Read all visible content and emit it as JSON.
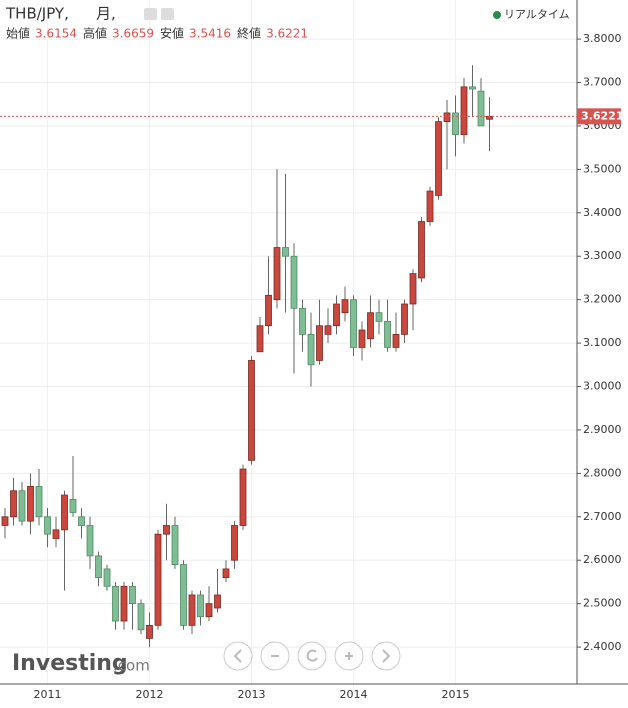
{
  "chart_data": {
    "type": "candlestick",
    "title": "THB/JPY,",
    "subtitle": "月,",
    "ohlc_labels": [
      "始値",
      "高値",
      "安値",
      "終値"
    ],
    "status": "リアルタイム",
    "categories": [
      null,
      null,
      null,
      null,
      null,
      "2011",
      null,
      null,
      null,
      null,
      null,
      null,
      null,
      null,
      null,
      null,
      null,
      "2012",
      null,
      null,
      null,
      null,
      null,
      null,
      null,
      null,
      null,
      null,
      null,
      "2013",
      null,
      null,
      null,
      null,
      null,
      null,
      null,
      null,
      null,
      null,
      null,
      "2014",
      null,
      null,
      null,
      null,
      null,
      null,
      null,
      null,
      null,
      null,
      null,
      "2015",
      null,
      null,
      null,
      null
    ],
    "open": [
      2.68,
      2.7,
      2.76,
      2.69,
      2.77,
      2.7,
      2.65,
      2.67,
      2.74,
      2.7,
      2.68,
      2.61,
      2.58,
      2.54,
      2.46,
      2.54,
      2.5,
      2.42,
      2.45,
      2.66,
      2.68,
      2.59,
      2.45,
      2.52,
      2.47,
      2.49,
      2.56,
      2.6,
      2.68,
      2.83,
      3.08,
      3.14,
      3.2,
      3.32,
      3.3,
      3.18,
      3.12,
      3.06,
      3.12,
      3.14,
      3.17,
      3.2,
      3.09,
      3.11,
      3.17,
      3.15,
      3.09,
      3.12,
      3.19,
      3.25,
      3.38,
      3.44,
      3.61,
      3.63,
      3.58,
      3.69,
      3.68,
      3.6154
    ],
    "high": [
      2.72,
      2.79,
      2.78,
      2.8,
      2.81,
      2.72,
      2.7,
      2.76,
      2.84,
      2.72,
      2.7,
      2.62,
      2.59,
      2.55,
      2.55,
      2.55,
      2.51,
      2.48,
      2.67,
      2.73,
      2.7,
      2.6,
      2.53,
      2.53,
      2.54,
      2.58,
      2.6,
      2.69,
      2.82,
      3.07,
      3.16,
      3.3,
      3.5,
      3.49,
      3.33,
      3.2,
      3.17,
      3.2,
      3.18,
      3.21,
      3.23,
      3.21,
      3.15,
      3.21,
      3.2,
      3.2,
      3.17,
      3.2,
      3.27,
      3.39,
      3.46,
      3.62,
      3.66,
      3.67,
      3.71,
      3.74,
      3.71,
      3.6659
    ],
    "low": [
      2.65,
      2.68,
      2.68,
      2.66,
      2.68,
      2.63,
      2.63,
      2.53,
      2.7,
      2.65,
      2.58,
      2.54,
      2.53,
      2.44,
      2.44,
      2.44,
      2.43,
      2.4,
      2.44,
      2.6,
      2.58,
      2.44,
      2.43,
      2.45,
      2.46,
      2.48,
      2.55,
      2.58,
      2.67,
      2.82,
      3.08,
      3.12,
      3.18,
      3.17,
      3.03,
      3.08,
      3.0,
      3.05,
      3.1,
      3.12,
      3.15,
      3.07,
      3.06,
      3.09,
      3.12,
      3.08,
      3.08,
      3.1,
      3.13,
      3.24,
      3.37,
      3.43,
      3.5,
      3.53,
      3.56,
      3.62,
      3.6,
      3.5416
    ],
    "close": [
      2.7,
      2.76,
      2.69,
      2.77,
      2.7,
      2.66,
      2.67,
      2.75,
      2.71,
      2.68,
      2.61,
      2.56,
      2.54,
      2.46,
      2.54,
      2.5,
      2.44,
      2.45,
      2.66,
      2.68,
      2.59,
      2.45,
      2.52,
      2.47,
      2.5,
      2.52,
      2.58,
      2.68,
      2.81,
      3.06,
      3.14,
      3.21,
      3.32,
      3.3,
      3.18,
      3.12,
      3.05,
      3.14,
      3.14,
      3.19,
      3.2,
      3.09,
      3.13,
      3.17,
      3.15,
      3.09,
      3.12,
      3.19,
      3.26,
      3.38,
      3.45,
      3.61,
      3.63,
      3.58,
      3.69,
      3.685,
      3.6,
      3.6221
    ],
    "up_color": "#c9473c",
    "down_color": "#7fbd95",
    "ylim": [
      2.315,
      3.89
    ],
    "yticks": [
      {
        "value": 2.4,
        "label": "2.4000"
      },
      {
        "value": 2.5,
        "label": "2.5000"
      },
      {
        "value": 2.6,
        "label": "2.6000"
      },
      {
        "value": 2.7,
        "label": "2.7000"
      },
      {
        "value": 2.8,
        "label": "2.8000"
      },
      {
        "value": 2.9,
        "label": "2.9000"
      },
      {
        "value": 3.0,
        "label": "3.0000"
      },
      {
        "value": 3.1,
        "label": "3.1000"
      },
      {
        "value": 3.2,
        "label": "3.2000"
      },
      {
        "value": 3.3,
        "label": "3.3000"
      },
      {
        "value": 3.4,
        "label": "3.4000"
      },
      {
        "value": 3.5,
        "label": "3.5000"
      },
      {
        "value": 3.6,
        "label": "3.6000"
      },
      {
        "value": 3.7,
        "label": "3.7000"
      },
      {
        "value": 3.8,
        "label": "3.8000"
      }
    ],
    "grid": true
  },
  "branding": [
    "Investing",
    ".com"
  ]
}
